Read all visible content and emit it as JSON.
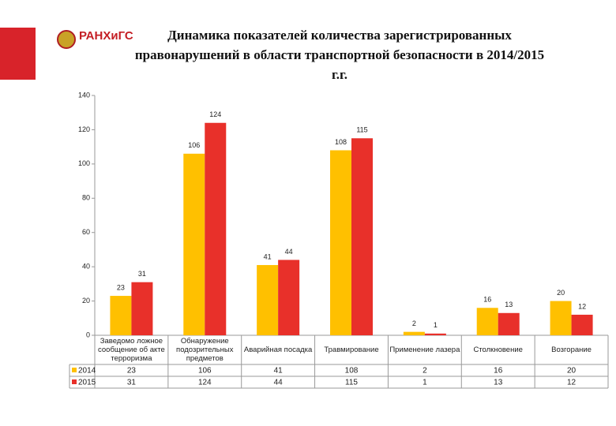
{
  "logo": "РАНХиГС",
  "chart_data": {
    "type": "bar",
    "title": "Динамика показателей количества зарегистрированных правонарушений в области транспортной безопасности в 2014/2015 г.г.",
    "categories": [
      "Заведомо ложное сообщение об акте терроризма",
      "Обнаружение подозрительных предметов",
      "Аварийная посадка",
      "Травмирование",
      "Применение лазера",
      "Столкновение",
      "Возгорание"
    ],
    "series": [
      {
        "name": "2014",
        "color": "#ffc000",
        "values": [
          23,
          106,
          41,
          108,
          2,
          16,
          20
        ]
      },
      {
        "name": "2015",
        "color": "#e8302a",
        "values": [
          31,
          124,
          44,
          115,
          1,
          13,
          12
        ]
      }
    ],
    "ylim": [
      0,
      140
    ],
    "yticks": [
      0,
      20,
      40,
      60,
      80,
      100,
      120,
      140
    ],
    "grid": false
  }
}
